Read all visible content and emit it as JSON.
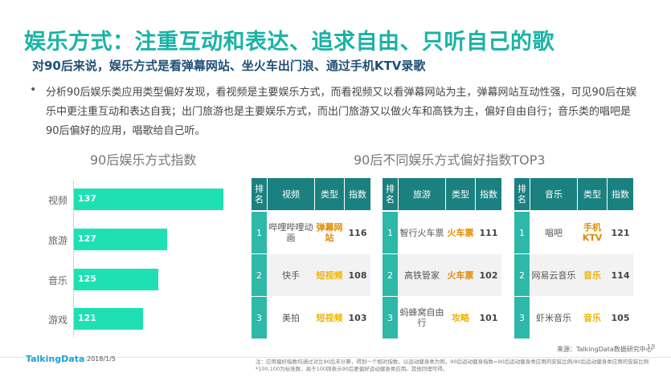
{
  "title": "娱乐方式：注重互动和表达、追求自由、只听自己的歌",
  "subtitle": "对90后来说，娱乐方式是看弹幕网站、坐火车出门浪、通过手机KTV录歌",
  "paragraph": "分析90后娱乐类应用类型偏好发现，看视频是主要娱乐方式，而看视频又以看弹幕网站为主，弹幕网站互动性强，可见90后在娱乐中更注重互动和表达自我；出门旅游也是主要娱乐方式，而出门旅游又以做火车和高铁为主，偏好自由自行；音乐类的唱吧是90后偏好的应用，唱歌给自己听。",
  "bullet": "•",
  "left_heading": "90后娱乐方式指数",
  "right_heading": "90后不同娱乐方式偏好指数TOP3",
  "chart_data": {
    "type": "bar",
    "orientation": "horizontal",
    "categories": [
      "视频",
      "旅游",
      "音乐",
      "游戏"
    ],
    "values": [
      137,
      127,
      125,
      121
    ],
    "title": "90后娱乐方式指数",
    "colors": {
      "bar": "#1fe0b3"
    }
  },
  "tables": [
    {
      "headers": [
        "排名",
        "视频",
        "类型",
        "指数"
      ],
      "rows": [
        {
          "rank": "1",
          "name": "哔哩哔哩动画",
          "type": "弹幕网站",
          "index": "116"
        },
        {
          "rank": "2",
          "name": "快手",
          "type": "短视频",
          "index": "108"
        },
        {
          "rank": "3",
          "name": "美拍",
          "type": "短视频",
          "index": "103"
        }
      ]
    },
    {
      "headers": [
        "排名",
        "旅游",
        "类型",
        "指数"
      ],
      "rows": [
        {
          "rank": "1",
          "name": "智行火车票",
          "type": "火车票",
          "index": "111"
        },
        {
          "rank": "2",
          "name": "高铁管家",
          "type": "火车票",
          "index": "102"
        },
        {
          "rank": "3",
          "name": "蚂蜂窝自由行",
          "type": "攻略",
          "index": "101"
        }
      ]
    },
    {
      "headers": [
        "排名",
        "音乐",
        "类型",
        "指数"
      ],
      "rows": [
        {
          "rank": "1",
          "name": "唱吧",
          "type": "手机KTV",
          "index": "121"
        },
        {
          "rank": "2",
          "name": "网易云音乐",
          "type": "音乐",
          "index": "114"
        },
        {
          "rank": "3",
          "name": "虾米音乐",
          "type": "音乐",
          "index": "105"
        }
      ]
    }
  ],
  "source": "来源：TalkingData数据研究中心",
  "page_number": "18",
  "logo": "TalkingData",
  "date": "2018/1/5",
  "note": "注：应用偏好指数均通过对比90后未计算，得到一个相对指数，以运动健身类为例，90后运动健身指数=90后运动健身类应用的安装比例/80后运动健身类应用的安装比例*100,100为标准数，高于100则表示90后更偏好运动健身类应用。其他同理可得。",
  "colors": {
    "title": "#1ab3a6",
    "subtitle": "#1f4f78",
    "table_header": "#1b8080",
    "rank_cell": "#2db8a8",
    "type_text": "#e08a00"
  }
}
